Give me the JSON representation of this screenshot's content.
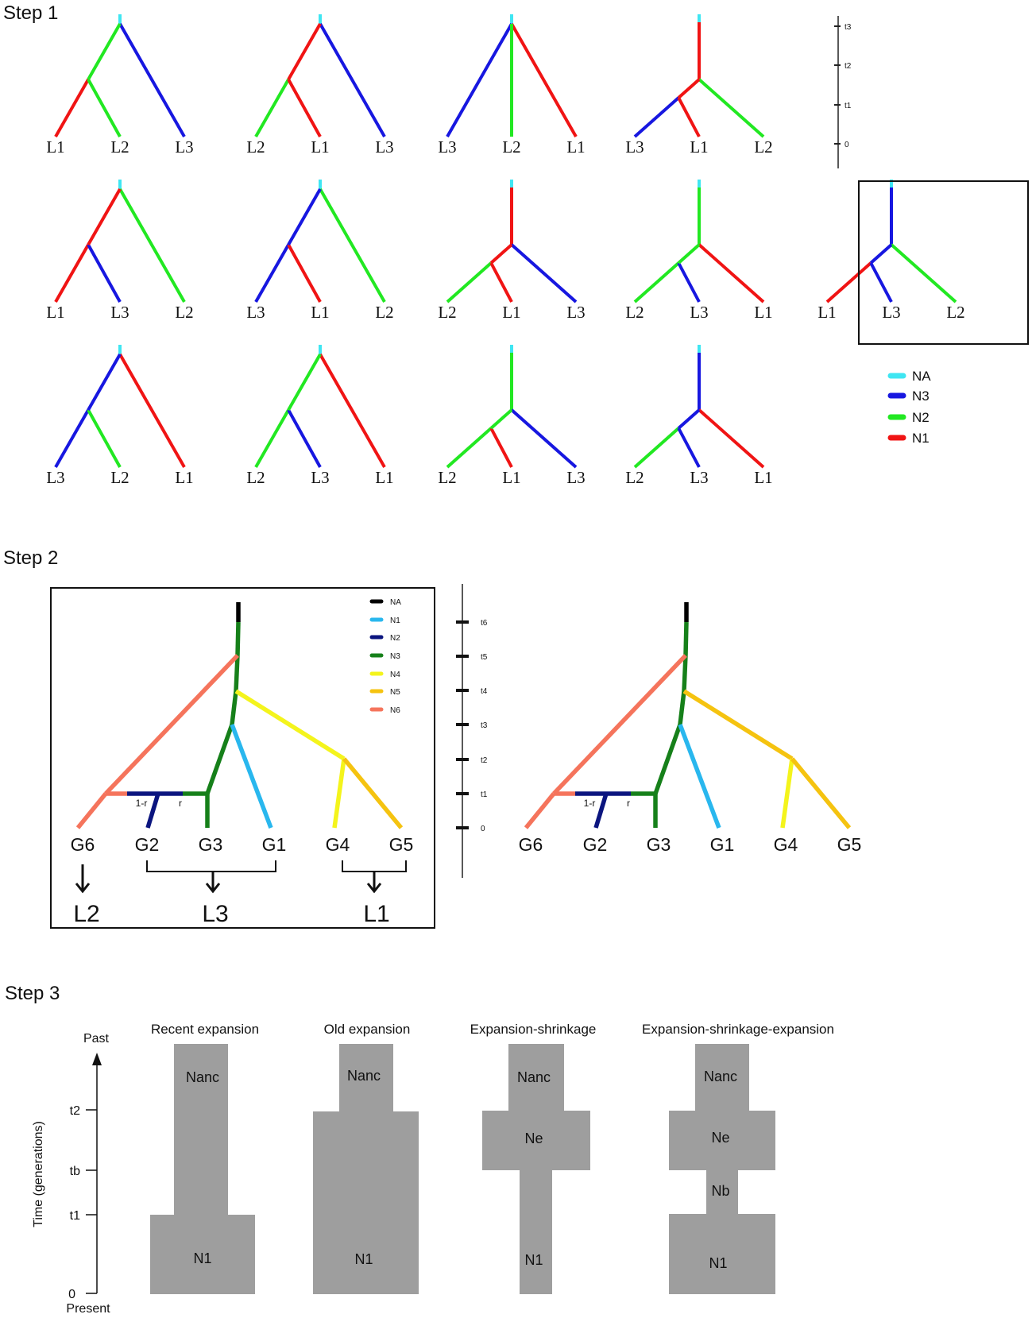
{
  "steps": {
    "s1": "Step 1",
    "s2": "Step 2",
    "s3": "Step 3"
  },
  "colors": {
    "step1": {
      "NA": "#3fe6f2",
      "N3": "#1717e0",
      "N2": "#22e822",
      "N1": "#f01414"
    },
    "step2": {
      "NA": "#000000",
      "N1": "#29b7ee",
      "N2": "#0b157f",
      "N3": "#16801a",
      "N4": "#f4f41c",
      "N5": "#f5c310",
      "N6": "#f5745c"
    },
    "step3_block": "#9e9e9e"
  },
  "step1": {
    "time_axis": [
      "t3",
      "t2",
      "t1",
      "0"
    ],
    "legend": [
      {
        "key": "NA",
        "label": "NA"
      },
      {
        "key": "N3",
        "label": "N3"
      },
      {
        "key": "N2",
        "label": "N2"
      },
      {
        "key": "N1",
        "label": "N1"
      }
    ],
    "trees": [
      {
        "leaves": [
          "L1",
          "L2",
          "L3"
        ],
        "stem": "NA",
        "rootY": "t3",
        "innerY": "t2",
        "c": [
          "N1",
          "N2",
          "N3",
          "N2"
        ]
      },
      {
        "leaves": [
          "L2",
          "L1",
          "L3"
        ],
        "stem": "NA",
        "rootY": "t3",
        "innerY": "t2",
        "c": [
          "N2",
          "N1",
          "N3",
          "N1"
        ]
      },
      {
        "leaves": [
          "L3",
          "L2",
          "L1"
        ],
        "stem": "NA",
        "rootY": "t3",
        "innerY": "t3",
        "c": [
          "N3",
          "N2",
          "N1",
          "N2"
        ]
      },
      {
        "leaves": [
          "L3",
          "L1",
          "L2"
        ],
        "stem": "N1",
        "rootY": "t2",
        "innerY": "t1",
        "c": [
          "N3",
          "N1",
          "N2",
          "N1"
        ]
      },
      {
        "leaves": [
          "L1",
          "L3",
          "L2"
        ],
        "stem": "NA",
        "rootY": "t3",
        "innerY": "t2",
        "c": [
          "N1",
          "N3",
          "N2",
          "N1"
        ]
      },
      {
        "leaves": [
          "L3",
          "L1",
          "L2"
        ],
        "stem": "NA",
        "rootY": "t3",
        "innerY": "t2",
        "c": [
          "N3",
          "N1",
          "N2",
          "N3"
        ]
      },
      {
        "leaves": [
          "L2",
          "L1",
          "L3"
        ],
        "stem": "N1",
        "rootY": "t2",
        "innerY": "t1",
        "c": [
          "N2",
          "N1",
          "N3",
          "N1"
        ]
      },
      {
        "leaves": [
          "L2",
          "L3",
          "L1"
        ],
        "stem": "N2",
        "rootY": "t2",
        "innerY": "t1",
        "c": [
          "N2",
          "N3",
          "N1",
          "N2"
        ]
      },
      {
        "leaves": [
          "L1",
          "L3",
          "L2"
        ],
        "stem": "N3",
        "rootY": "t2",
        "innerY": "t1",
        "c": [
          "N1",
          "N3",
          "N2",
          "N3"
        ],
        "highlighted": true
      },
      {
        "leaves": [
          "L3",
          "L2",
          "L1"
        ],
        "stem": "NA",
        "rootY": "t3",
        "innerY": "t2",
        "c": [
          "N3",
          "N2",
          "N1",
          "N3"
        ]
      },
      {
        "leaves": [
          "L2",
          "L3",
          "L1"
        ],
        "stem": "NA",
        "rootY": "t3",
        "innerY": "t2",
        "c": [
          "N2",
          "N3",
          "N1",
          "N2"
        ]
      },
      {
        "leaves": [
          "L2",
          "L1",
          "L3"
        ],
        "stem": "N2",
        "rootY": "t2",
        "innerY": "t1",
        "c": [
          "N2",
          "N1",
          "N3",
          "N2"
        ]
      },
      {
        "leaves": [
          "L2",
          "L3",
          "L1"
        ],
        "stem": "N3",
        "rootY": "t2",
        "innerY": "t1",
        "c": [
          "N2",
          "N3",
          "N1",
          "N3"
        ]
      }
    ]
  },
  "step2": {
    "legend": [
      "NA",
      "N1",
      "N2",
      "N3",
      "N4",
      "N5",
      "N6"
    ],
    "time_axis": [
      "t6",
      "t5",
      "t4",
      "t3",
      "t2",
      "t1",
      "0"
    ],
    "genomes": [
      "G6",
      "G2",
      "G3",
      "G1",
      "G4",
      "G5"
    ],
    "admix_labels": [
      "1-r",
      "r"
    ],
    "groups": [
      "L2",
      "L3",
      "L1"
    ]
  },
  "step3": {
    "time_label": "Time (generations)",
    "past": "Past",
    "present": "Present",
    "ticks": [
      "t2",
      "tb",
      "t1",
      "0"
    ],
    "models": [
      {
        "title": "Recent expansion",
        "labels": [
          "Nanc",
          "N1"
        ]
      },
      {
        "title": "Old expansion",
        "labels": [
          "Nanc",
          "N1"
        ]
      },
      {
        "title": "Expansion-shrinkage",
        "labels": [
          "Nanc",
          "Ne",
          "N1"
        ]
      },
      {
        "title": "Expansion-shrinkage-expansion",
        "labels": [
          "Nanc",
          "Ne",
          "Nb",
          "N1"
        ]
      }
    ]
  }
}
